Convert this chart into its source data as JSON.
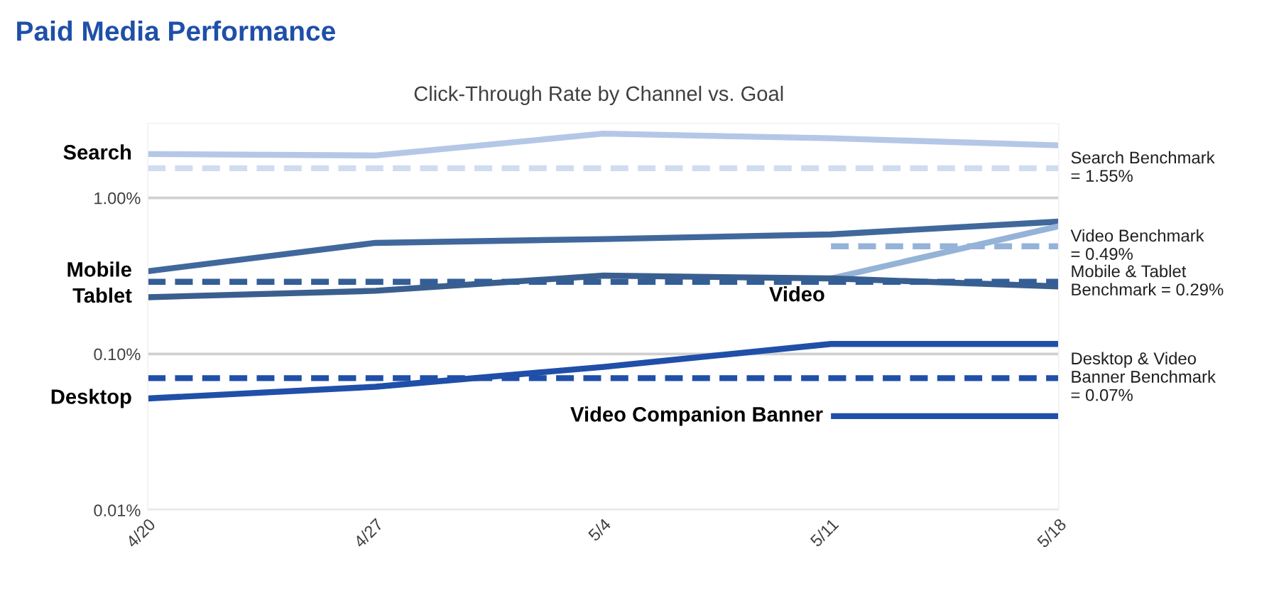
{
  "chart_data": {
    "type": "line",
    "title": "Paid Media Performance",
    "subtitle": "Click-Through Rate by Channel vs. Goal",
    "categories": [
      "4/20",
      "4/27",
      "5/4",
      "5/11",
      "5/18"
    ],
    "log": true,
    "ylim": [
      0.01,
      3
    ],
    "yticks": [
      {
        "value": 0.01,
        "label": "0.01%"
      },
      {
        "value": 0.1,
        "label": "0.10%"
      },
      {
        "value": 1,
        "label": "1.00%"
      }
    ],
    "grid": "y",
    "legend": false,
    "marker": "none",
    "series": [
      {
        "name": "Search",
        "color": "#b4c7e7",
        "values": [
          1.91,
          1.87,
          2.58,
          2.41,
          2.17
        ]
      },
      {
        "name": "Search Benchmark\n= 1.55%",
        "color": "#d0dcef",
        "line_style": "dashed",
        "values": [
          1.55,
          1.55,
          1.55,
          1.55,
          1.55
        ]
      },
      {
        "name": "Mobile",
        "color": "#40689c",
        "values": [
          0.339,
          0.515,
          0.545,
          0.584,
          0.705
        ]
      },
      {
        "name": "Video",
        "color": "#95b3d7",
        "values": [
          null,
          null,
          null,
          0.305,
          0.658
        ]
      },
      {
        "name": "Video Benchmark\n= 0.49%",
        "color": "#95b3d7",
        "line_style": "dashed",
        "values": [
          null,
          null,
          null,
          0.49,
          0.49
        ]
      },
      {
        "name": "Tablet",
        "color": "#3a5f8f",
        "values": [
          0.231,
          0.254,
          0.318,
          0.305,
          0.271
        ]
      },
      {
        "name": "Mobile & Tablet\nBenchmark = 0.29%",
        "color": "#335e96",
        "line_style": "dashed",
        "values": [
          0.29,
          0.29,
          0.29,
          0.29,
          0.29
        ]
      },
      {
        "name": "Desktop",
        "color": "#1f4fa8",
        "values": [
          0.0519,
          0.0617,
          0.0827,
          0.116,
          0.116
        ]
      },
      {
        "name": "Desktop & Video\nBanner Benchmark\n= 0.07%",
        "color": "#1f4fa8",
        "line_style": "dashed",
        "values": [
          0.07,
          0.07,
          0.07,
          0.07,
          0.07
        ]
      },
      {
        "name": "Video Companion Banner",
        "color": "#1f4fa8",
        "values": [
          null,
          null,
          null,
          0.04,
          0.04
        ]
      }
    ]
  }
}
